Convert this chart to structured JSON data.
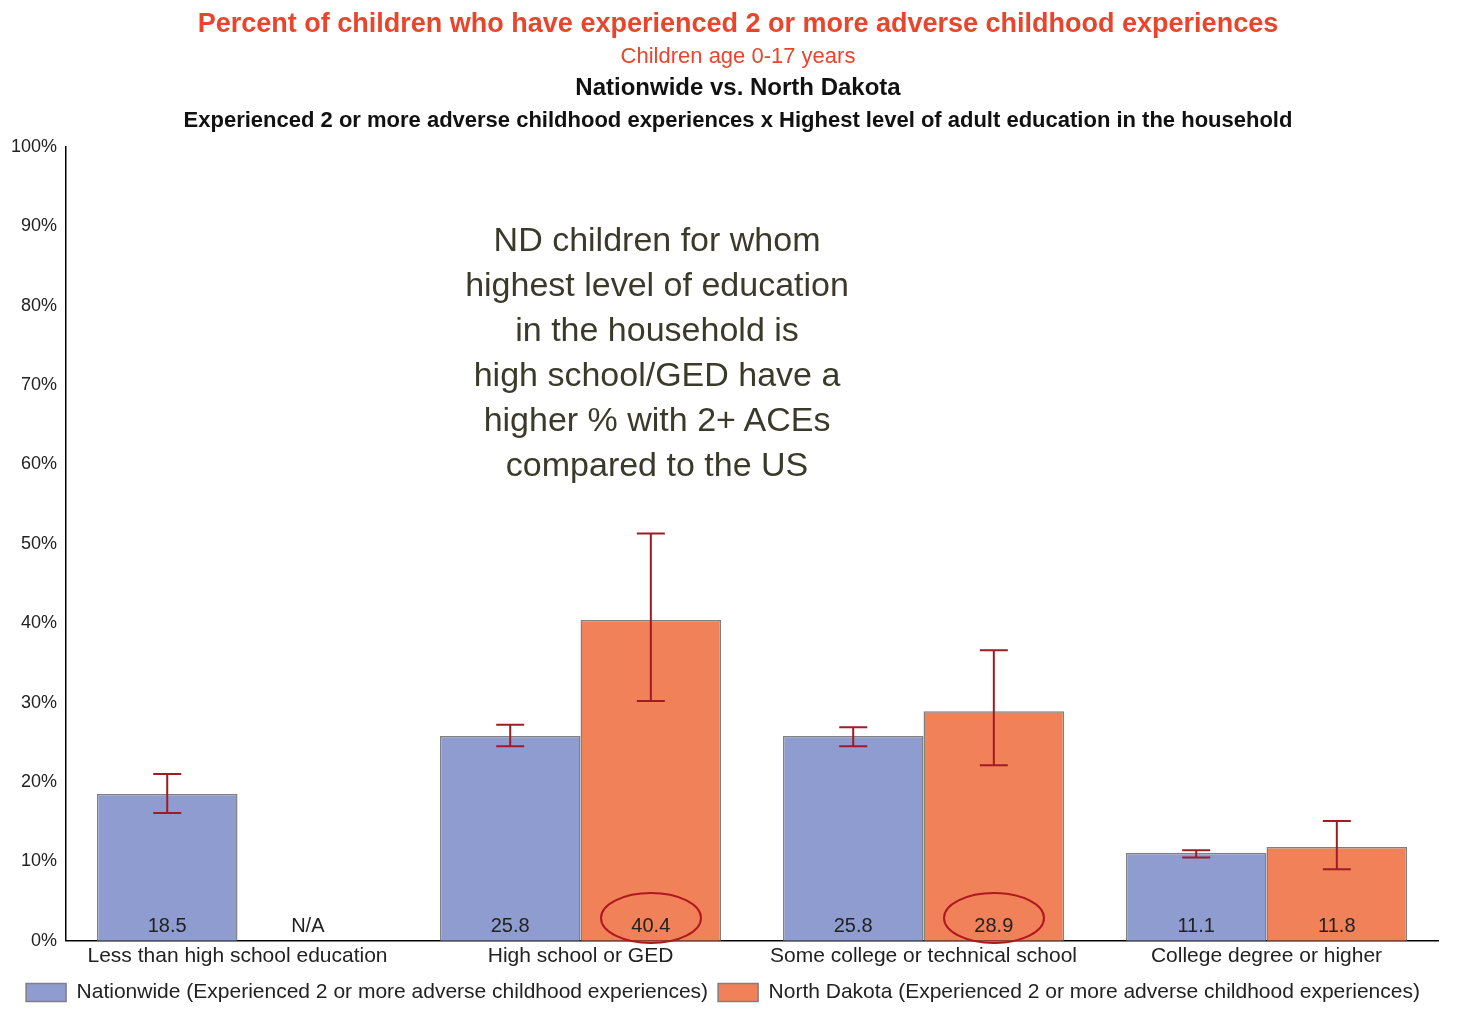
{
  "chart_data": {
    "type": "bar",
    "title": "Percent of children who have experienced 2 or more adverse childhood experiences",
    "subtitle": "Children age 0-17 years",
    "annotations": [
      "Nationwide vs. North Dakota",
      "Experienced 2 or more adverse childhood experiences x Highest level of adult education in the household",
      "ND children for whom\nhighest level of education\nin the household is\nhigh school/GED have a\nhigher % with 2+ ACEs\ncompared to the US"
    ],
    "categories": [
      "Less than high school education",
      "High school or GED",
      "Some college or technical school",
      "College degree or higher"
    ],
    "series": [
      {
        "name": "Nationwide (Experienced 2 or more adverse childhood experiences)",
        "color": "#8f9ccf",
        "values": [
          18.5,
          25.8,
          25.8,
          11.1
        ],
        "errors": [
          [
            16.1,
            21.0
          ],
          [
            24.5,
            27.2
          ],
          [
            24.5,
            26.9
          ],
          [
            10.5,
            11.4
          ]
        ],
        "value_labels": [
          "18.5",
          "25.8",
          "25.8",
          "11.1"
        ]
      },
      {
        "name": "North Dakota (Experienced 2 or more adverse childhood experiences)",
        "color": "#f08158",
        "values": [
          null,
          40.4,
          28.9,
          11.8
        ],
        "errors": [
          null,
          [
            30.2,
            51.3
          ],
          [
            22.1,
            36.6
          ],
          [
            9.0,
            15.1
          ]
        ],
        "value_labels": [
          "N/A",
          "40.4",
          "28.9",
          "11.8"
        ]
      }
    ],
    "ylim": [
      0,
      100
    ],
    "yticks": [
      {
        "value": 0,
        "label": "0%"
      },
      {
        "value": 10,
        "label": "10%"
      },
      {
        "value": 20,
        "label": "20%"
      },
      {
        "value": 30,
        "label": "30%"
      },
      {
        "value": 40,
        "label": "40%"
      },
      {
        "value": 50,
        "label": "50%"
      },
      {
        "value": 60,
        "label": "60%"
      },
      {
        "value": 70,
        "label": "70%"
      },
      {
        "value": 80,
        "label": "80%"
      },
      {
        "value": 90,
        "label": "90%"
      },
      {
        "value": 100,
        "label": "100%"
      }
    ],
    "grid": false,
    "legend": "bottom"
  }
}
